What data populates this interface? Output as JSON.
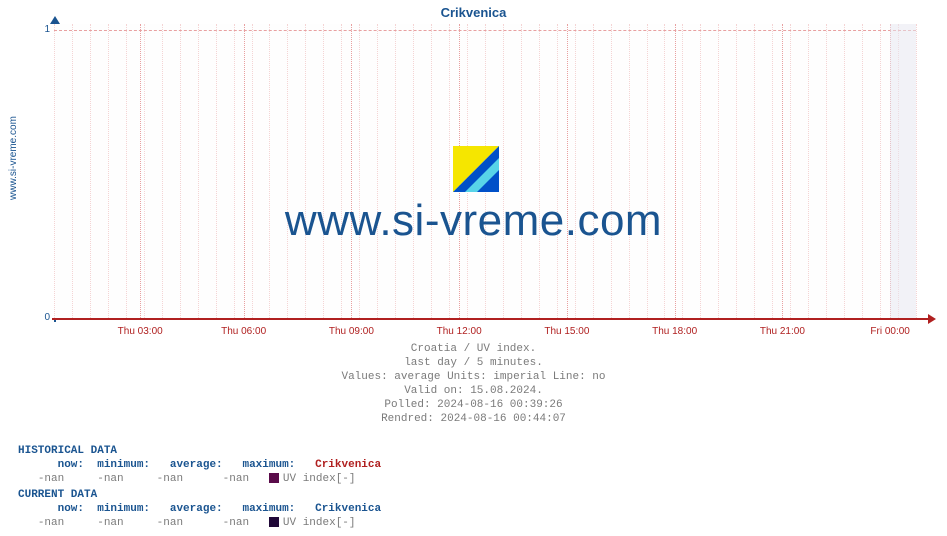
{
  "side_label": "www.si-vreme.com",
  "chart": {
    "title": "Crikvenica",
    "type": "line",
    "background_color": "#fefefe",
    "title_color": "#1a5490",
    "title_fontsize": 13,
    "y_axis_color": "#1a5490",
    "x_axis_color": "#b02020",
    "grid_major_color": "#e8a0a0",
    "grid_minor_color": "#f4d4d4",
    "ylim": [
      0,
      1
    ],
    "yticks": [
      {
        "value": 0,
        "label": "0",
        "pos_pct": 100
      },
      {
        "value": 1,
        "label": "1",
        "pos_pct": 2
      }
    ],
    "xticks_major": [
      {
        "label": "Thu 03:00",
        "pos_pct": 10
      },
      {
        "label": "Thu 06:00",
        "pos_pct": 22
      },
      {
        "label": "Thu 09:00",
        "pos_pct": 34.5
      },
      {
        "label": "Thu 12:00",
        "pos_pct": 47
      },
      {
        "label": "Thu 15:00",
        "pos_pct": 59.5
      },
      {
        "label": "Thu 18:00",
        "pos_pct": 72
      },
      {
        "label": "Thu 21:00",
        "pos_pct": 84.5
      },
      {
        "label": "Fri 00:00",
        "pos_pct": 97
      }
    ],
    "minor_per_major": 6,
    "minor_step_pct": 2.083,
    "minor_start_pct": 0.0,
    "overlay_region_pct": [
      97,
      100
    ]
  },
  "watermark": {
    "text": "www.si-vreme.com",
    "text_color": "#1a5490",
    "text_fontsize": 44,
    "logo_colors": {
      "tri1": "#f5e600",
      "tri2": "#0050c8",
      "diag": "#58d4e8"
    }
  },
  "info": {
    "line1": "Croatia / UV index.",
    "line2": "last day / 5 minutes.",
    "line3": "Values: average  Units: imperial  Line: no",
    "line4": "Valid on: 15.08.2024.",
    "line5": "Polled: 2024-08-16 00:39:26",
    "line6": "Rendred: 2024-08-16 00:44:07",
    "color": "#7a7a7a",
    "fontsize": 11
  },
  "historical": {
    "header": "HISTORICAL DATA",
    "cols": {
      "now": "now:",
      "min": "minimum:",
      "avg": "average:",
      "max": "maximum:"
    },
    "series_name": "Crikvenica",
    "name_color": "#b02020",
    "legend_color": "#5a0b4a",
    "vals": {
      "now": "-nan",
      "min": "-nan",
      "avg": "-nan",
      "max": "-nan"
    },
    "unit": "UV index[-]"
  },
  "current": {
    "header": "CURRENT DATA",
    "cols": {
      "now": "now:",
      "min": "minimum:",
      "avg": "average:",
      "max": "maximum:"
    },
    "series_name": "Crikvenica",
    "name_color": "#1a5490",
    "legend_color": "#200838",
    "vals": {
      "now": "-nan",
      "min": "-nan",
      "avg": "-nan",
      "max": "-nan"
    },
    "unit": "UV index[-]"
  }
}
